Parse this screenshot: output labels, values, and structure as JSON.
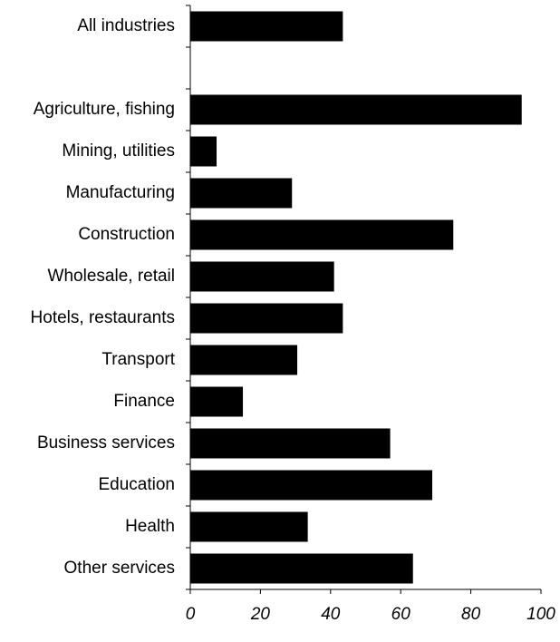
{
  "chart_data": {
    "type": "bar",
    "orientation": "horizontal",
    "title": "",
    "xlabel": "",
    "ylabel": "",
    "categories": [
      "All industries",
      "",
      "Agriculture, fishing",
      "Mining, utilities",
      "Manufacturing",
      "Construction",
      "Wholesale, retail",
      "Hotels, restaurants",
      "Transport",
      "Finance",
      "Business services",
      "Education",
      "Health",
      "Other services"
    ],
    "values": [
      43.5,
      null,
      94.5,
      7.5,
      29,
      75,
      41,
      43.5,
      30.5,
      15,
      57,
      69,
      33.5,
      63.5
    ],
    "xlim": [
      0,
      100
    ],
    "xticks": [
      "0",
      "20",
      "40",
      "60",
      "80",
      "100"
    ],
    "grid": false,
    "legend": "none",
    "bar_color": "#000000"
  }
}
